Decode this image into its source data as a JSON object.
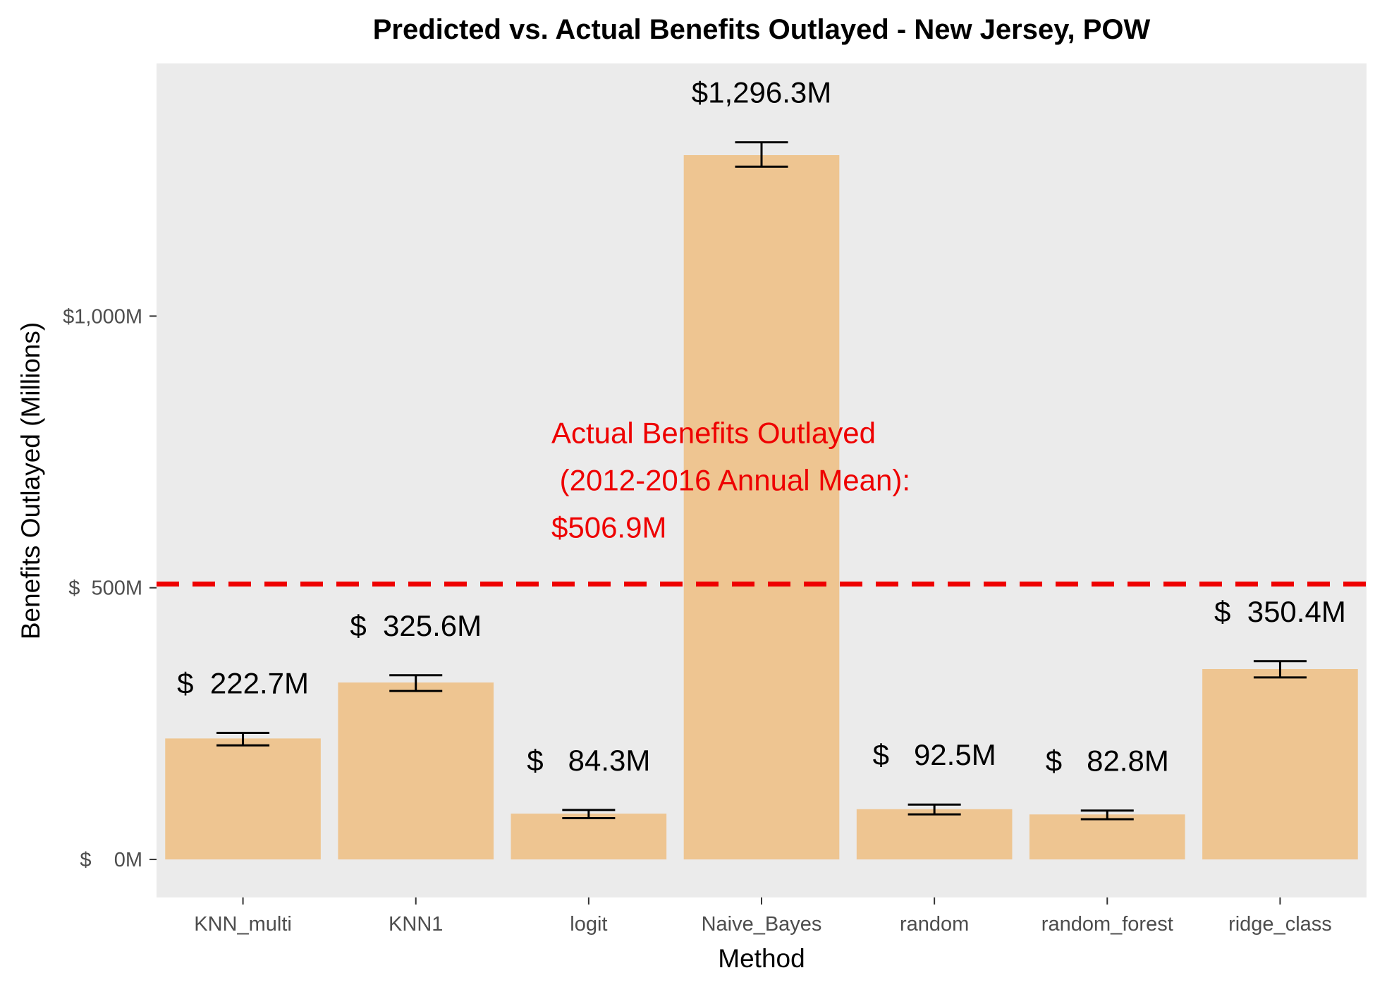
{
  "chart_data": {
    "type": "bar",
    "title": "Predicted vs. Actual Benefits Outlayed - New Jersey, POW",
    "xlabel": "Method",
    "ylabel": "Benefits Outlayed (Millions)",
    "categories": [
      "KNN_multi",
      "KNN1",
      "logit",
      "Naive_Bayes",
      "random",
      "random_forest",
      "ridge_class"
    ],
    "values": [
      222.7,
      325.6,
      84.3,
      1296.3,
      92.5,
      82.8,
      350.4
    ],
    "error_low": [
      210,
      310,
      76,
      1275,
      83,
      74,
      335
    ],
    "error_high": [
      233,
      339,
      91,
      1320,
      101,
      90,
      365
    ],
    "data_labels": [
      "$  222.7M",
      "$  325.6M",
      "$   84.3M",
      "$1,296.3M",
      "$   92.5M",
      "$   82.8M",
      "$  350.4M"
    ],
    "ylim": [
      -70,
      1465
    ],
    "y_ticks": [
      0,
      500,
      1000
    ],
    "y_tick_labels": [
      "$    0M",
      "$  500M",
      "$1,000M"
    ],
    "reference_line": {
      "value": 506.9,
      "style": "dashed",
      "color": "#ee0000",
      "label_lines": [
        "Actual Benefits Outlayed",
        " (2012-2016 Annual Mean):",
        "$506.9M"
      ]
    },
    "colors": {
      "bar": "#eec591",
      "panel": "#ebebeb",
      "error_bar": "#000000",
      "reference": "#ee0000"
    },
    "grid": false,
    "legend": "none"
  }
}
